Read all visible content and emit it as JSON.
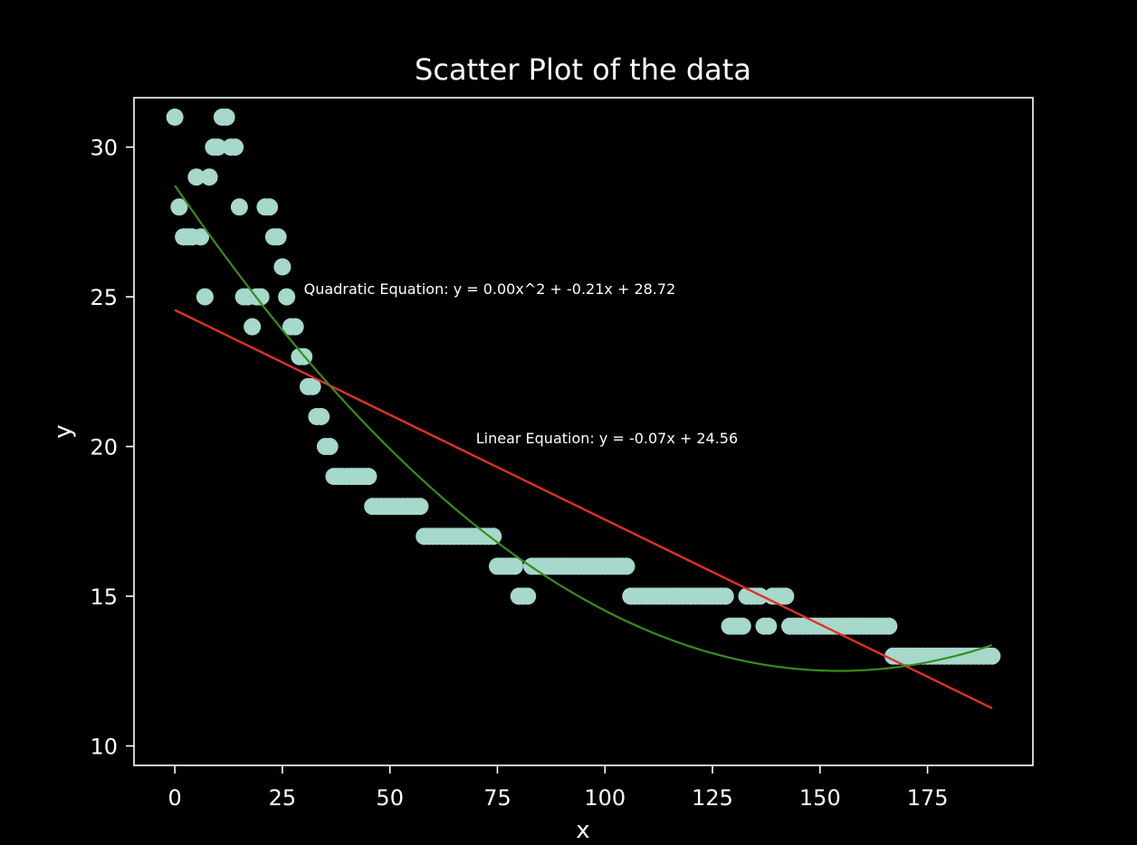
{
  "chart_data": {
    "type": "scatter",
    "title": "Scatter Plot of the data",
    "xlabel": "x",
    "ylabel": "y",
    "xlim": [
      -9.5,
      199.5
    ],
    "ylim": [
      9.35,
      31.65
    ],
    "xticks": [
      0,
      25,
      50,
      75,
      100,
      125,
      150,
      175
    ],
    "yticks": [
      10,
      15,
      20,
      25,
      30
    ],
    "grid": false,
    "background": "#000000",
    "colors": {
      "points": "#a6d8cc",
      "linear_fit": "#e03226",
      "quadratic_fit": "#3a8c1e",
      "axes": "#ffffff"
    },
    "series": [
      {
        "kind": "points",
        "x": [
          0,
          1,
          2,
          3,
          4,
          5,
          6,
          7,
          8,
          9,
          10,
          11,
          12,
          13,
          14,
          15,
          16,
          17,
          18,
          19,
          20,
          21,
          22,
          23,
          24,
          25,
          26,
          27,
          28,
          29,
          30,
          31,
          32,
          33,
          34,
          35,
          36,
          37,
          38,
          39,
          40,
          41,
          42,
          43,
          44,
          45,
          46,
          47,
          48,
          49,
          50,
          51,
          52,
          53,
          54,
          55,
          56,
          57,
          58,
          59,
          60,
          61,
          62,
          63,
          64,
          65,
          66,
          67,
          68,
          69,
          70,
          71,
          72,
          73,
          74,
          75,
          76,
          77,
          78,
          79,
          80,
          81,
          82,
          83,
          84,
          85,
          86,
          87,
          88,
          89,
          90,
          91,
          92,
          93,
          94,
          95,
          96,
          97,
          98,
          99,
          100,
          101,
          102,
          103,
          104,
          105,
          106,
          107,
          108,
          109,
          110,
          111,
          112,
          113,
          114,
          115,
          116,
          117,
          118,
          119,
          120,
          121,
          122,
          123,
          124,
          125,
          126,
          127,
          128,
          129,
          130,
          131,
          132,
          133,
          134,
          135,
          136,
          137,
          138,
          139,
          140,
          141,
          142,
          143,
          144,
          145,
          146,
          147,
          148,
          149,
          150,
          151,
          152,
          153,
          154,
          155,
          156,
          157,
          158,
          159,
          160,
          161,
          162,
          163,
          164,
          165,
          166,
          167,
          168,
          169,
          170,
          171,
          172,
          173,
          174,
          175,
          176,
          177,
          178,
          179,
          180,
          181,
          182,
          183,
          184,
          185,
          186,
          187,
          188,
          189,
          190
        ],
        "y": [
          31,
          28,
          27,
          27,
          27,
          29,
          27,
          25,
          29,
          30,
          30,
          31,
          31,
          30,
          30,
          28,
          25,
          25,
          24,
          25,
          25,
          28,
          28,
          27,
          27,
          26,
          25,
          24,
          24,
          23,
          23,
          22,
          22,
          21,
          21,
          20,
          20,
          19,
          19,
          19,
          19,
          19,
          19,
          19,
          19,
          19,
          18,
          18,
          18,
          18,
          18,
          18,
          18,
          18,
          18,
          18,
          18,
          18,
          17,
          17,
          17,
          17,
          17,
          17,
          17,
          17,
          17,
          17,
          17,
          17,
          17,
          17,
          17,
          17,
          17,
          16,
          16,
          16,
          16,
          16,
          15,
          15,
          15,
          16,
          16,
          16,
          16,
          16,
          16,
          16,
          16,
          16,
          16,
          16,
          16,
          16,
          16,
          16,
          16,
          16,
          16,
          16,
          16,
          16,
          16,
          16,
          15,
          15,
          15,
          15,
          15,
          15,
          15,
          15,
          15,
          15,
          15,
          15,
          15,
          15,
          15,
          15,
          15,
          15,
          15,
          15,
          15,
          15,
          15,
          14,
          14,
          14,
          14,
          15,
          15,
          15,
          15,
          14,
          14,
          15,
          15,
          15,
          15,
          14,
          14,
          14,
          14,
          14,
          14,
          14,
          14,
          14,
          14,
          14,
          14,
          14,
          14,
          14,
          14,
          14,
          14,
          14,
          14,
          14,
          14,
          14,
          14,
          13,
          13,
          13,
          13,
          13,
          13,
          13,
          13,
          13,
          13,
          13,
          13,
          13,
          13,
          13,
          13,
          13,
          13,
          13,
          13,
          13,
          13,
          13,
          13
        ]
      },
      {
        "kind": "linear",
        "coefficients": [
          -0.07,
          24.56
        ],
        "x_range": [
          0,
          190
        ]
      },
      {
        "kind": "quadratic",
        "coefficients": [
          0.00068,
          -0.21,
          28.72
        ],
        "x_range": [
          0,
          190
        ]
      }
    ],
    "annotations": [
      {
        "text": "Quadratic Equation: y = 0.00x^2 + -0.21x + 28.72",
        "x": 30,
        "y": 25.1
      },
      {
        "text": "Linear Equation: y = -0.07x + 24.56",
        "x": 70,
        "y": 20.1
      }
    ]
  }
}
